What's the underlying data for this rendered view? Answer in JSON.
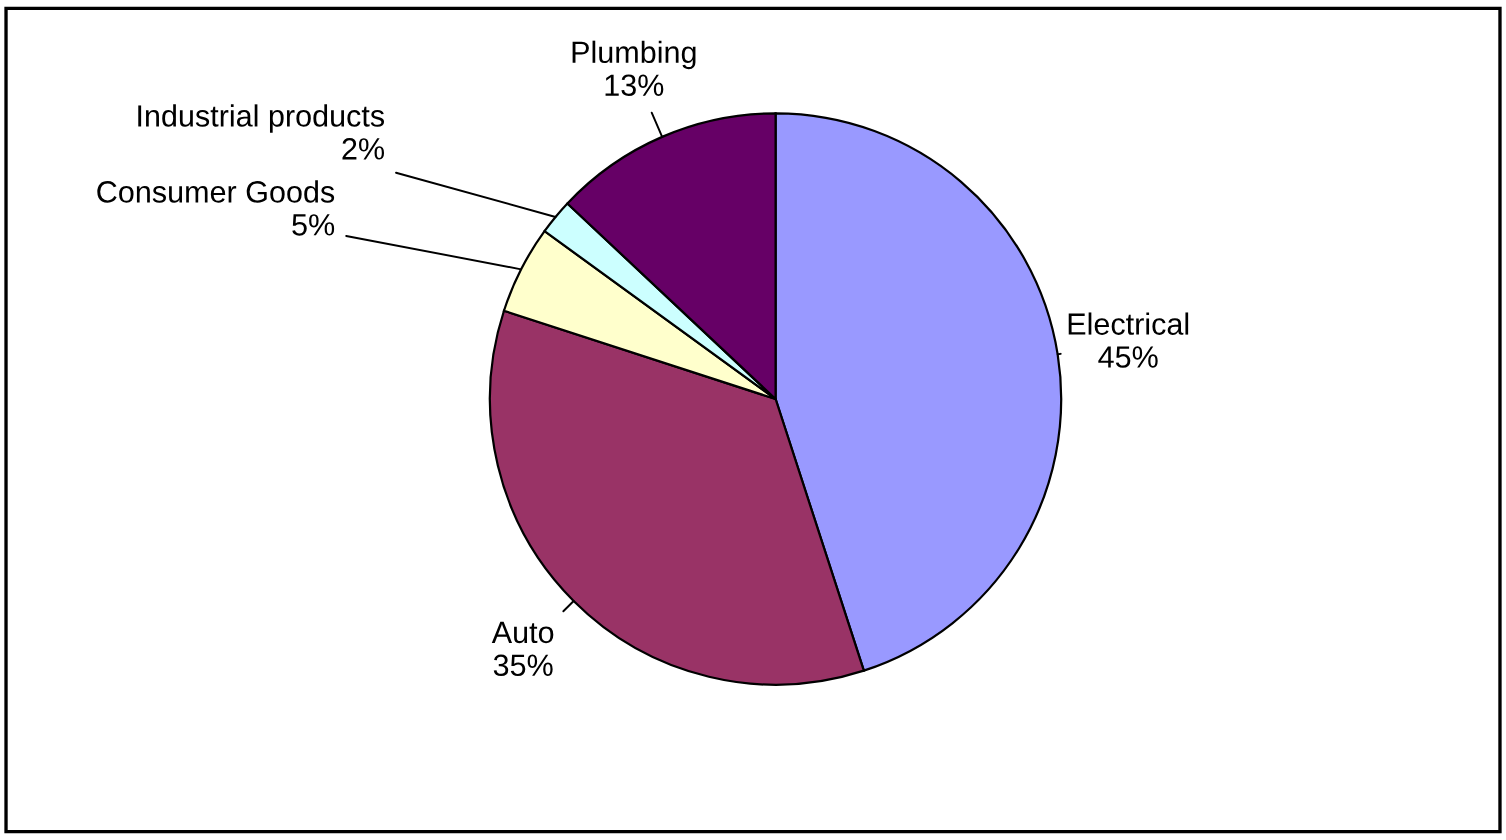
{
  "chart_data": {
    "type": "pie",
    "categories": [
      "Electrical",
      "Auto",
      "Consumer Goods",
      "Industrial products",
      "Plumbing"
    ],
    "values": [
      45,
      35,
      5,
      2,
      13
    ],
    "colors": [
      "#9999ff",
      "#993366",
      "#ffffcc",
      "#ccffff",
      "#660066"
    ],
    "value_labels": [
      "45%",
      "35%",
      "5%",
      "2%",
      "13%"
    ],
    "legend": false
  }
}
